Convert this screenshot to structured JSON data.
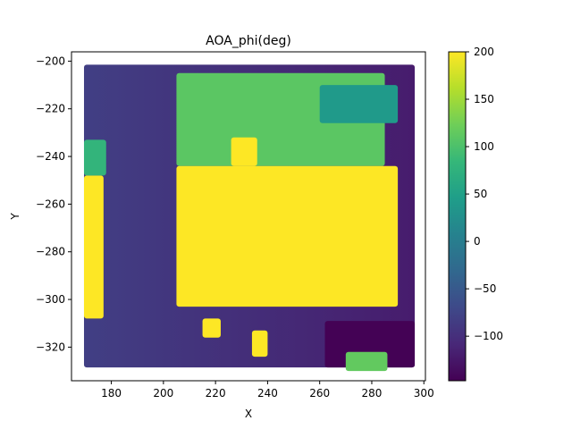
{
  "chart_data": {
    "type": "heatmap",
    "title": "AOA_phi(deg)",
    "xlabel": "X",
    "ylabel": "Y",
    "xlim": [
      164.7,
      300.6
    ],
    "ylim": [
      -334.1,
      -196.1
    ],
    "x_ticks": [
      180,
      200,
      220,
      240,
      260,
      280,
      300
    ],
    "y_ticks": [
      -200,
      -220,
      -240,
      -260,
      -280,
      -300,
      -320
    ],
    "colorbar": {
      "colormap": "viridis",
      "range": [
        -147,
        200
      ],
      "ticks": [
        200,
        150,
        100,
        50,
        0,
        -50,
        -100
      ]
    },
    "grid": false,
    "regions": [
      {
        "name": "background-gradient",
        "x_range": [
          169.5,
          296.5
        ],
        "y_range": [
          -328.5,
          -201.5
        ],
        "value_left": -82,
        "value_right": -120
      },
      {
        "name": "lower-right-dark",
        "x_range": [
          262,
          296.5
        ],
        "y_range": [
          -328.5,
          -309
        ],
        "value": -146
      },
      {
        "name": "upper-right-green",
        "x_range": [
          205,
          285
        ],
        "y_range": [
          -244,
          -205
        ],
        "value": 110
      },
      {
        "name": "upper-right-teal",
        "x_range": [
          260,
          290
        ],
        "y_range": [
          -226,
          -210
        ],
        "value": 40
      },
      {
        "name": "center-block",
        "x_range": [
          205,
          290
        ],
        "y_range": [
          -303,
          -244
        ],
        "value": 200
      },
      {
        "name": "center-top-step",
        "x_range": [
          226,
          236
        ],
        "y_range": [
          -244,
          -232
        ],
        "value": 200
      },
      {
        "name": "left-strip",
        "x_range": [
          169.5,
          177
        ],
        "y_range": [
          -308,
          -248
        ],
        "value": 200
      },
      {
        "name": "left-top-green",
        "x_range": [
          169.5,
          178
        ],
        "y_range": [
          -248,
          -233
        ],
        "value": 80
      },
      {
        "name": "bottom-middle-block",
        "x_range": [
          234,
          240
        ],
        "y_range": [
          -324,
          -313
        ],
        "value": 200
      },
      {
        "name": "bottom-left-patch",
        "x_range": [
          215,
          222
        ],
        "y_range": [
          -316,
          -308
        ],
        "value": 200
      },
      {
        "name": "bottom-green-patch",
        "x_range": [
          270,
          286
        ],
        "y_range": [
          -330,
          -322
        ],
        "value": 115
      }
    ]
  }
}
